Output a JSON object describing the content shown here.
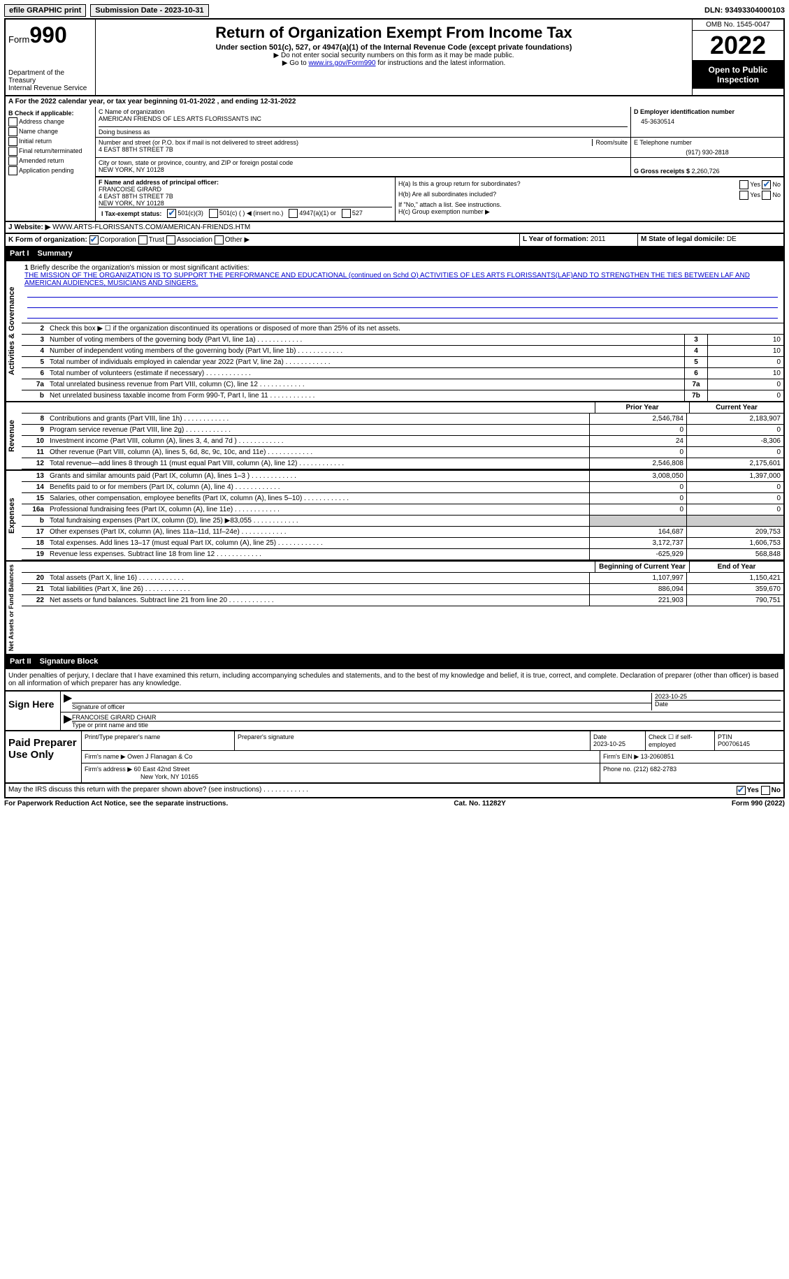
{
  "topbar": {
    "efile": "efile GRAPHIC print",
    "submission": "Submission Date - 2023-10-31",
    "dln": "DLN: 93493304000103"
  },
  "header": {
    "form_prefix": "Form",
    "form_number": "990",
    "dept": "Department of the Treasury",
    "irs": "Internal Revenue Service",
    "title": "Return of Organization Exempt From Income Tax",
    "subtitle": "Under section 501(c), 527, or 4947(a)(1) of the Internal Revenue Code (except private foundations)",
    "note1": "▶ Do not enter social security numbers on this form as it may be made public.",
    "note2_pre": "▶ Go to ",
    "note2_link": "www.irs.gov/Form990",
    "note2_post": " for instructions and the latest information.",
    "omb": "OMB No. 1545-0047",
    "year": "2022",
    "public": "Open to Public Inspection"
  },
  "rowA": "A For the 2022 calendar year, or tax year beginning 01-01-2022    , and ending 12-31-2022",
  "colB": {
    "title": "B Check if applicable:",
    "opts": [
      "Address change",
      "Name change",
      "Initial return",
      "Final return/terminated",
      "Amended return",
      "Application pending"
    ]
  },
  "c": {
    "label": "C Name of organization",
    "name": "AMERICAN FRIENDS OF LES ARTS FLORISSANTS INC",
    "dba_label": "Doing business as",
    "addr_label": "Number and street (or P.O. box if mail is not delivered to street address)",
    "room_label": "Room/suite",
    "addr": "4 EAST 88TH STREET 7B",
    "city_label": "City or town, state or province, country, and ZIP or foreign postal code",
    "city": "NEW YORK, NY  10128"
  },
  "d": {
    "label": "D Employer identification number",
    "val": "45-3630514"
  },
  "e": {
    "label": "E Telephone number",
    "val": "(917) 930-2818"
  },
  "g": {
    "label": "G Gross receipts $",
    "val": "2,260,726"
  },
  "f": {
    "label": "F Name and address of principal officer:",
    "name": "FRANCOISE GIRARD",
    "addr1": "4 EAST 88TH STREET 7B",
    "addr2": "NEW YORK, NY  10128"
  },
  "h": {
    "a": "H(a)  Is this a group return for subordinates?",
    "b": "H(b)  Are all subordinates included?",
    "note": "If \"No,\" attach a list. See instructions.",
    "c": "H(c)  Group exemption number ▶"
  },
  "i": {
    "label": "I   Tax-exempt status:",
    "opts": [
      "501(c)(3)",
      "501(c) (   ) ◀ (insert no.)",
      "4947(a)(1) or",
      "527"
    ]
  },
  "j": {
    "label": "J   Website: ▶",
    "val": "WWW.ARTS-FLORISSANTS.COM/AMERICAN-FRIENDS.HTM"
  },
  "k": "K Form of organization:",
  "k_opts": [
    "Corporation",
    "Trust",
    "Association",
    "Other ▶"
  ],
  "l": {
    "label": "L Year of formation:",
    "val": "2011"
  },
  "m": {
    "label": "M State of legal domicile:",
    "val": "DE"
  },
  "part1": {
    "label": "Part I",
    "title": "Summary"
  },
  "sidebar": {
    "ag": "Activities & Governance",
    "rev": "Revenue",
    "exp": "Expenses",
    "na": "Net Assets or Fund Balances"
  },
  "mission": {
    "num": "1",
    "label": "Briefly describe the organization's mission or most significant activities:",
    "text": "THE MISSION OF THE ORGANIZATION IS TO SUPPORT THE PERFORMANCE AND EDUCATIONAL (continued on Schd O) ACTIVITIES OF LES ARTS FLORISSANTS(LAF)AND TO STRENGTHEN THE TIES BETWEEN LAF AND AMERICAN AUDIENCES, MUSICIANS AND SINGERS."
  },
  "line2": "Check this box ▶ ☐  if the organization discontinued its operations or disposed of more than 25% of its net assets.",
  "gov_lines": [
    {
      "n": "3",
      "t": "Number of voting members of the governing body (Part VI, line 1a)",
      "box": "3",
      "v": "10"
    },
    {
      "n": "4",
      "t": "Number of independent voting members of the governing body (Part VI, line 1b)",
      "box": "4",
      "v": "10"
    },
    {
      "n": "5",
      "t": "Total number of individuals employed in calendar year 2022 (Part V, line 2a)",
      "box": "5",
      "v": "0"
    },
    {
      "n": "6",
      "t": "Total number of volunteers (estimate if necessary)",
      "box": "6",
      "v": "10"
    },
    {
      "n": "7a",
      "t": "Total unrelated business revenue from Part VIII, column (C), line 12",
      "box": "7a",
      "v": "0"
    },
    {
      "n": "b",
      "t": "Net unrelated business taxable income from Form 990-T, Part I, line 11",
      "box": "7b",
      "v": "0"
    }
  ],
  "col_headers": {
    "py": "Prior Year",
    "cy": "Current Year"
  },
  "rev_lines": [
    {
      "n": "8",
      "t": "Contributions and grants (Part VIII, line 1h)",
      "py": "2,546,784",
      "cy": "2,183,907"
    },
    {
      "n": "9",
      "t": "Program service revenue (Part VIII, line 2g)",
      "py": "0",
      "cy": "0"
    },
    {
      "n": "10",
      "t": "Investment income (Part VIII, column (A), lines 3, 4, and 7d )",
      "py": "24",
      "cy": "-8,306"
    },
    {
      "n": "11",
      "t": "Other revenue (Part VIII, column (A), lines 5, 6d, 8c, 9c, 10c, and 11e)",
      "py": "0",
      "cy": "0"
    },
    {
      "n": "12",
      "t": "Total revenue—add lines 8 through 11 (must equal Part VIII, column (A), line 12)",
      "py": "2,546,808",
      "cy": "2,175,601"
    }
  ],
  "exp_lines": [
    {
      "n": "13",
      "t": "Grants and similar amounts paid (Part IX, column (A), lines 1–3 )",
      "py": "3,008,050",
      "cy": "1,397,000"
    },
    {
      "n": "14",
      "t": "Benefits paid to or for members (Part IX, column (A), line 4)",
      "py": "0",
      "cy": "0"
    },
    {
      "n": "15",
      "t": "Salaries, other compensation, employee benefits (Part IX, column (A), lines 5–10)",
      "py": "0",
      "cy": "0"
    },
    {
      "n": "16a",
      "t": "Professional fundraising fees (Part IX, column (A), line 11e)",
      "py": "0",
      "cy": "0"
    },
    {
      "n": "b",
      "t": "Total fundraising expenses (Part IX, column (D), line 25) ▶83,055",
      "py": "",
      "cy": "",
      "shaded": true
    },
    {
      "n": "17",
      "t": "Other expenses (Part IX, column (A), lines 11a–11d, 11f–24e)",
      "py": "164,687",
      "cy": "209,753"
    },
    {
      "n": "18",
      "t": "Total expenses. Add lines 13–17 (must equal Part IX, column (A), line 25)",
      "py": "3,172,737",
      "cy": "1,606,753"
    },
    {
      "n": "19",
      "t": "Revenue less expenses. Subtract line 18 from line 12",
      "py": "-625,929",
      "cy": "568,848"
    }
  ],
  "na_headers": {
    "b": "Beginning of Current Year",
    "e": "End of Year"
  },
  "na_lines": [
    {
      "n": "20",
      "t": "Total assets (Part X, line 16)",
      "py": "1,107,997",
      "cy": "1,150,421"
    },
    {
      "n": "21",
      "t": "Total liabilities (Part X, line 26)",
      "py": "886,094",
      "cy": "359,670"
    },
    {
      "n": "22",
      "t": "Net assets or fund balances. Subtract line 21 from line 20",
      "py": "221,903",
      "cy": "790,751"
    }
  ],
  "part2": {
    "label": "Part II",
    "title": "Signature Block"
  },
  "sig_text": "Under penalties of perjury, I declare that I have examined this return, including accompanying schedules and statements, and to the best of my knowledge and belief, it is true, correct, and complete. Declaration of preparer (other than officer) is based on all information of which preparer has any knowledge.",
  "sign": {
    "label": "Sign Here",
    "sig_label": "Signature of officer",
    "date": "2023-10-25",
    "date_label": "Date",
    "name": "FRANCOISE GIRARD  CHAIR",
    "name_label": "Type or print name and title"
  },
  "prep": {
    "label": "Paid Preparer Use Only",
    "h1": "Print/Type preparer's name",
    "h2": "Preparer's signature",
    "h3": "Date",
    "date": "2023-10-25",
    "h4": "Check ☐ if self-employed",
    "h5": "PTIN",
    "ptin": "P00706145",
    "firm_label": "Firm's name    ▶",
    "firm": "Owen J Flanagan & Co",
    "ein_label": "Firm's EIN ▶",
    "ein": "13-2060851",
    "addr_label": "Firm's address ▶",
    "addr1": "60 East 42nd Street",
    "addr2": "New York, NY  10165",
    "phone_label": "Phone no.",
    "phone": "(212) 682-2783"
  },
  "discuss": "May the IRS discuss this return with the preparer shown above? (see instructions)",
  "footer": {
    "left": "For Paperwork Reduction Act Notice, see the separate instructions.",
    "mid": "Cat. No. 11282Y",
    "right": "Form 990 (2022)"
  },
  "colors": {
    "link": "#0000cc",
    "check": "#1a5fb4"
  }
}
